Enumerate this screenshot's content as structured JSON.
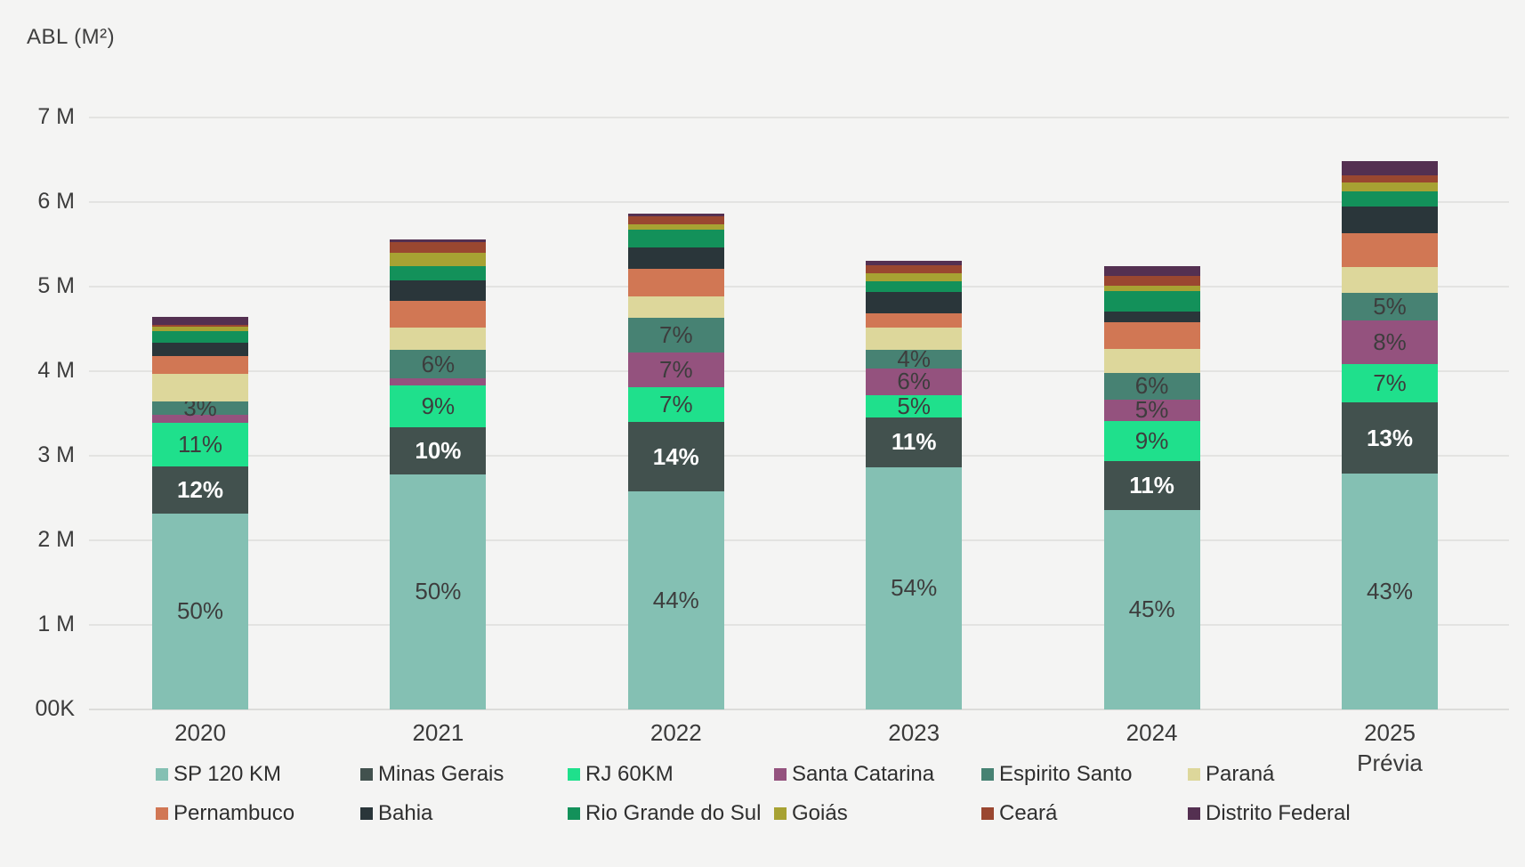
{
  "header": {
    "title": "ABL (M²)"
  },
  "chart_data": {
    "type": "bar",
    "stacked": true,
    "title": "ABL (M²)",
    "ylabel": "ABL (M²)",
    "value_unit": "millions of m²",
    "grid": true,
    "legend_position": "bottom",
    "ylim": [
      0,
      7
    ],
    "y_ticks": [
      {
        "label": "7 M",
        "value": 7
      },
      {
        "label": "6 M",
        "value": 6
      },
      {
        "label": "5 M",
        "value": 5
      },
      {
        "label": "4 M",
        "value": 4
      },
      {
        "label": "3 M",
        "value": 3
      },
      {
        "label": "2 M",
        "value": 2
      },
      {
        "label": "1 M",
        "value": 1
      },
      {
        "label": "00K",
        "value": 0
      }
    ],
    "categories": [
      "2020",
      "2021",
      "2022",
      "2023",
      "2024",
      "2025 Prévia"
    ],
    "category_lines": [
      [
        "2020"
      ],
      [
        "2021"
      ],
      [
        "2022"
      ],
      [
        "2023"
      ],
      [
        "2024"
      ],
      [
        "2025",
        "Prévia"
      ]
    ],
    "totals_M": [
      4.64,
      5.56,
      5.86,
      5.31,
      5.24,
      6.48
    ],
    "series": [
      {
        "name": "SP 120 KM",
        "color": "#84c0b3",
        "pct": [
          50,
          50,
          44,
          54,
          45,
          43
        ],
        "labels": [
          "50%",
          "50%",
          "44%",
          "54%",
          "45%",
          "43%"
        ],
        "label_style": "dark"
      },
      {
        "name": "Minas Gerais",
        "color": "#42514e",
        "pct": [
          12,
          10,
          14,
          11,
          11,
          13
        ],
        "labels": [
          "12%",
          "10%",
          "14%",
          "11%",
          "11%",
          "13%"
        ],
        "label_style": "light"
      },
      {
        "name": "RJ 60KM",
        "color": "#1fe08c",
        "pct": [
          11,
          9,
          7,
          5,
          9,
          7
        ],
        "labels": [
          "11%",
          "9%",
          "7%",
          "5%",
          "9%",
          "7%"
        ],
        "label_style": "dark"
      },
      {
        "name": "Santa Catarina",
        "color": "#94527e",
        "pct": [
          2,
          1.4,
          7,
          6,
          5,
          8
        ],
        "labels": [
          null,
          null,
          "7%",
          "6%",
          "5%",
          "8%"
        ],
        "label_style": "dark"
      },
      {
        "name": "Espirito Santo",
        "color": "#478273",
        "pct": [
          3.5,
          6,
          7,
          4,
          6,
          5
        ],
        "labels": [
          "3%",
          "6%",
          "7%",
          "4%",
          "6%",
          "5%"
        ],
        "label_style": "dark"
      },
      {
        "name": "Paraná",
        "color": "#ddd79b",
        "pct": [
          7,
          4.9,
          4.4,
          5,
          5.3,
          4.8
        ],
        "labels": [
          null,
          null,
          null,
          null,
          null,
          null
        ],
        "label_style": "dark"
      },
      {
        "name": "Pernambuco",
        "color": "#d17754",
        "pct": [
          4.5,
          5.6,
          5.5,
          3.2,
          6,
          6.1
        ],
        "labels": [
          null,
          null,
          null,
          null,
          null,
          null
        ],
        "label_style": "dark"
      },
      {
        "name": "Bahia",
        "color": "#2a363a",
        "pct": [
          3.5,
          4.4,
          4.4,
          4.7,
          2.4,
          4.8
        ],
        "labels": [
          null,
          null,
          null,
          null,
          null,
          null
        ],
        "label_style": "light"
      },
      {
        "name": "Rio Grande do Sul",
        "color": "#13915a",
        "pct": [
          3,
          3,
          3.5,
          2.4,
          4.8,
          2.8
        ],
        "labels": [
          null,
          null,
          null,
          null,
          null,
          null
        ],
        "label_style": "dark"
      },
      {
        "name": "Goiás",
        "color": "#a7a233",
        "pct": [
          1,
          2.8,
          1.1,
          1.9,
          1.2,
          1.6
        ],
        "labels": [
          null,
          null,
          null,
          null,
          null,
          null
        ],
        "label_style": "dark"
      },
      {
        "name": "Ceará",
        "color": "#9a4730",
        "pct": [
          0.5,
          2.2,
          1.6,
          1.7,
          2.2,
          1.4
        ],
        "labels": [
          null,
          null,
          null,
          null,
          null,
          null
        ],
        "label_style": "light"
      },
      {
        "name": "Distrito Federal",
        "color": "#543051",
        "pct": [
          2,
          0.7,
          0.5,
          1.1,
          2.1,
          2.5
        ],
        "labels": [
          null,
          null,
          null,
          null,
          null,
          null
        ],
        "label_style": "light"
      }
    ]
  }
}
